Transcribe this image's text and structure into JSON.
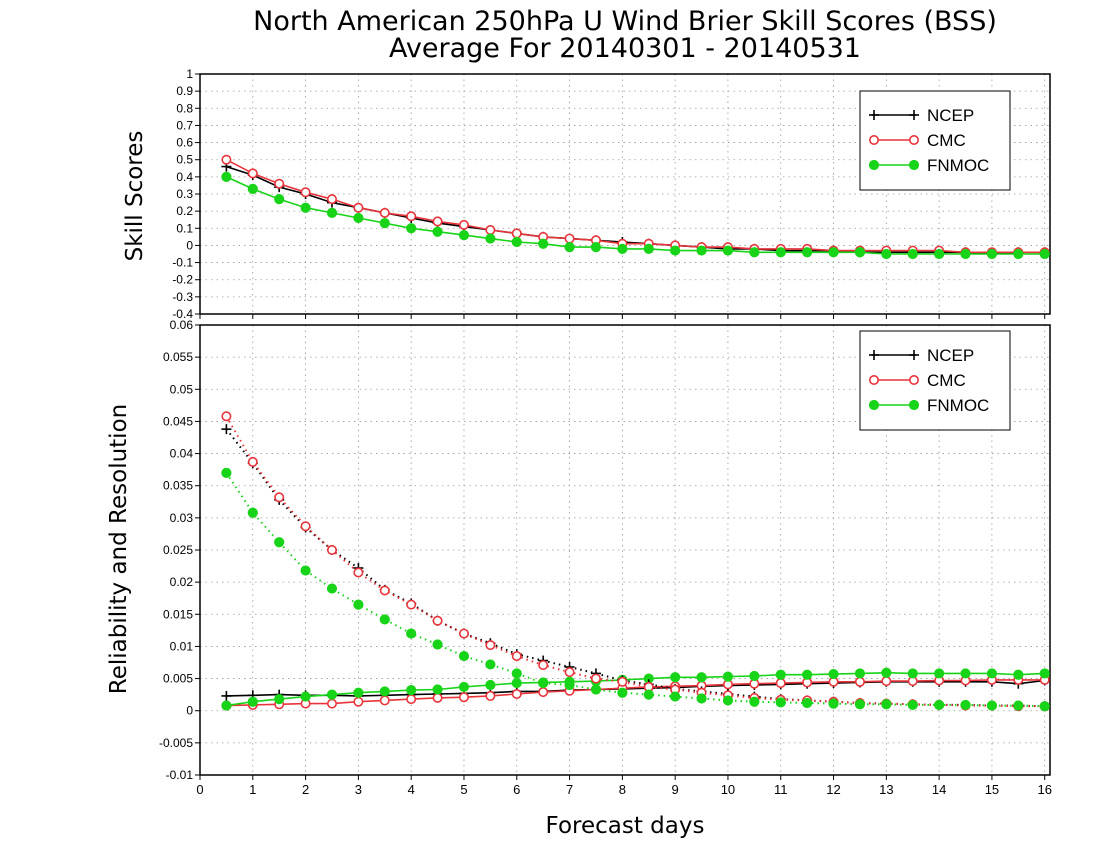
{
  "title_line1": "North American 250hPa U Wind Brier Skill Scores (BSS)",
  "title_line2": "Average For 20140301 - 20140531",
  "xlabel": "Forecast days",
  "colors": {
    "NCEP": "#000000",
    "CMC": "#e8343a",
    "FNMOC": "#18d418",
    "grid": "#9a9a9a"
  },
  "chart_data": [
    {
      "type": "line",
      "ylabel": "Skill Scores",
      "xlim": [
        0,
        16.1
      ],
      "ylim": [
        -0.4,
        1
      ],
      "x_ticks": [
        0,
        1,
        2,
        3,
        4,
        5,
        6,
        7,
        8,
        9,
        10,
        11,
        12,
        13,
        14,
        15,
        16
      ],
      "y_ticks": [
        -0.4,
        -0.3,
        -0.2,
        -0.1,
        0,
        0.1,
        0.2,
        0.3,
        0.4,
        0.5,
        0.6,
        0.7,
        0.8,
        0.9,
        1
      ],
      "y_tick_labels": [
        "-0.4",
        "-0.3",
        "-0.2",
        "-0.1",
        "0",
        "0.1",
        "0.2",
        "0.3",
        "0.4",
        "0.5",
        "0.6",
        "0.7",
        "0.8",
        "0.9",
        "1"
      ],
      "grid": true,
      "legend": "top-right",
      "legend_entries": [
        "NCEP",
        "CMC",
        "FNMOC"
      ],
      "x": [
        0.5,
        1,
        1.5,
        2,
        2.5,
        3,
        3.5,
        4,
        4.5,
        5,
        5.5,
        6,
        6.5,
        7,
        7.5,
        8,
        8.5,
        9,
        9.5,
        10,
        10.5,
        11,
        11.5,
        12,
        12.5,
        13,
        13.5,
        14,
        14.5,
        15,
        15.5,
        16
      ],
      "series": [
        {
          "name": "NCEP",
          "style": "solid",
          "marker": "plus",
          "values": [
            0.46,
            0.41,
            0.34,
            0.3,
            0.25,
            0.22,
            0.19,
            0.16,
            0.13,
            0.11,
            0.09,
            0.07,
            0.05,
            0.04,
            0.03,
            0.02,
            0.01,
            0.0,
            -0.01,
            -0.02,
            -0.02,
            -0.03,
            -0.03,
            -0.03,
            -0.04,
            -0.04,
            -0.04,
            -0.04,
            -0.04,
            -0.05,
            -0.04,
            -0.04
          ]
        },
        {
          "name": "CMC",
          "style": "solid",
          "marker": "circle-open",
          "values": [
            0.5,
            0.42,
            0.36,
            0.31,
            0.27,
            0.22,
            0.19,
            0.17,
            0.14,
            0.12,
            0.09,
            0.07,
            0.05,
            0.04,
            0.03,
            0.01,
            0.01,
            0.0,
            -0.01,
            -0.01,
            -0.02,
            -0.02,
            -0.02,
            -0.03,
            -0.03,
            -0.03,
            -0.03,
            -0.03,
            -0.04,
            -0.04,
            -0.04,
            -0.04
          ]
        },
        {
          "name": "FNMOC",
          "style": "solid",
          "marker": "circle-filled",
          "values": [
            0.4,
            0.33,
            0.27,
            0.22,
            0.19,
            0.16,
            0.13,
            0.1,
            0.08,
            0.06,
            0.04,
            0.02,
            0.01,
            -0.01,
            -0.01,
            -0.02,
            -0.02,
            -0.03,
            -0.03,
            -0.03,
            -0.04,
            -0.04,
            -0.04,
            -0.04,
            -0.04,
            -0.05,
            -0.05,
            -0.05,
            -0.05,
            -0.05,
            -0.05,
            -0.05
          ]
        }
      ]
    },
    {
      "type": "line",
      "ylabel": "Reliability and Resolution",
      "xlim": [
        0,
        16.1
      ],
      "ylim": [
        -0.01,
        0.06
      ],
      "x_ticks": [
        0,
        1,
        2,
        3,
        4,
        5,
        6,
        7,
        8,
        9,
        10,
        11,
        12,
        13,
        14,
        15,
        16
      ],
      "x_tick_labels": [
        "0",
        "1",
        "2",
        "3",
        "4",
        "5",
        "6",
        "7",
        "8",
        "9",
        "10",
        "11",
        "12",
        "13",
        "14",
        "15",
        "16"
      ],
      "y_ticks": [
        -0.01,
        -0.005,
        0,
        0.005,
        0.01,
        0.015,
        0.02,
        0.025,
        0.03,
        0.035,
        0.04,
        0.045,
        0.05,
        0.055,
        0.06
      ],
      "y_tick_labels": [
        "-0.01",
        "-0.005",
        "0",
        "0.005",
        "0.01",
        "0.015",
        "0.02",
        "0.025",
        "0.03",
        "0.035",
        "0.04",
        "0.045",
        "0.05",
        "0.055",
        "0.06"
      ],
      "grid": true,
      "legend": "top-right",
      "legend_entries": [
        "NCEP",
        "CMC",
        "FNMOC"
      ],
      "x": [
        0.5,
        1,
        1.5,
        2,
        2.5,
        3,
        3.5,
        4,
        4.5,
        5,
        5.5,
        6,
        6.5,
        7,
        7.5,
        8,
        8.5,
        9,
        9.5,
        10,
        10.5,
        11,
        11.5,
        12,
        12.5,
        13,
        13.5,
        14,
        14.5,
        15,
        15.5,
        16
      ],
      "series": [
        {
          "name": "NCEP",
          "style": "solid",
          "marker": "plus",
          "values": [
            0.0023,
            0.0024,
            0.0025,
            0.0024,
            0.0024,
            0.0023,
            0.0024,
            0.0025,
            0.0026,
            0.0027,
            0.0028,
            0.003,
            0.003,
            0.0032,
            0.0033,
            0.0034,
            0.0035,
            0.0036,
            0.0038,
            0.0039,
            0.004,
            0.0041,
            0.0042,
            0.0043,
            0.0044,
            0.0045,
            0.0045,
            0.0045,
            0.0045,
            0.0045,
            0.0042,
            0.0047
          ]
        },
        {
          "name": "CMC",
          "style": "solid",
          "marker": "circle-open",
          "values": [
            0.0008,
            0.0009,
            0.001,
            0.0011,
            0.0011,
            0.0014,
            0.0016,
            0.0018,
            0.002,
            0.0021,
            0.0023,
            0.0026,
            0.0029,
            0.0031,
            0.0033,
            0.0035,
            0.0037,
            0.0038,
            0.0039,
            0.0041,
            0.0042,
            0.0043,
            0.0044,
            0.0045,
            0.0045,
            0.0046,
            0.0046,
            0.0047,
            0.0047,
            0.0048,
            0.0048,
            0.0048
          ]
        },
        {
          "name": "FNMOC",
          "style": "solid",
          "marker": "circle-filled",
          "values": [
            0.0008,
            0.0014,
            0.0018,
            0.0022,
            0.0025,
            0.0028,
            0.003,
            0.0032,
            0.0033,
            0.0037,
            0.004,
            0.0043,
            0.0044,
            0.0045,
            0.0046,
            0.0048,
            0.005,
            0.0052,
            0.0052,
            0.0053,
            0.0054,
            0.0056,
            0.0056,
            0.0057,
            0.0058,
            0.0059,
            0.0058,
            0.0058,
            0.0058,
            0.0058,
            0.0056,
            0.0058
          ]
        },
        {
          "name": "NCEP",
          "style": "dotted",
          "marker": "plus",
          "values": [
            0.0438,
            0.0385,
            0.0328,
            0.0285,
            0.025,
            0.0222,
            0.0188,
            0.0167,
            0.014,
            0.012,
            0.0105,
            0.0088,
            0.0078,
            0.0068,
            0.0058,
            0.0047,
            0.0041,
            0.0034,
            0.003,
            0.0026,
            0.0022,
            0.0018,
            0.0016,
            0.0014,
            0.0012,
            0.0011,
            0.001,
            0.0009,
            0.0009,
            0.0008,
            0.0008,
            0.0007
          ]
        },
        {
          "name": "CMC",
          "style": "dotted",
          "marker": "circle-open",
          "values": [
            0.0458,
            0.0387,
            0.0332,
            0.0287,
            0.025,
            0.0215,
            0.0187,
            0.0165,
            0.014,
            0.012,
            0.0102,
            0.0085,
            0.0071,
            0.006,
            0.005,
            0.0045,
            0.0037,
            0.0033,
            0.0028,
            0.0024,
            0.002,
            0.0017,
            0.0016,
            0.0014,
            0.0012,
            0.0011,
            0.001,
            0.0009,
            0.0008,
            0.0008,
            0.0007,
            0.0007
          ]
        },
        {
          "name": "FNMOC",
          "style": "dotted",
          "marker": "circle-filled",
          "values": [
            0.037,
            0.0308,
            0.0262,
            0.0218,
            0.019,
            0.0165,
            0.0142,
            0.012,
            0.0103,
            0.0085,
            0.0072,
            0.0058,
            0.0043,
            0.004,
            0.0033,
            0.0028,
            0.0025,
            0.0022,
            0.0019,
            0.0016,
            0.0014,
            0.0013,
            0.0012,
            0.0011,
            0.001,
            0.001,
            0.0009,
            0.0009,
            0.0009,
            0.0008,
            0.0008,
            0.0007
          ]
        }
      ]
    }
  ]
}
